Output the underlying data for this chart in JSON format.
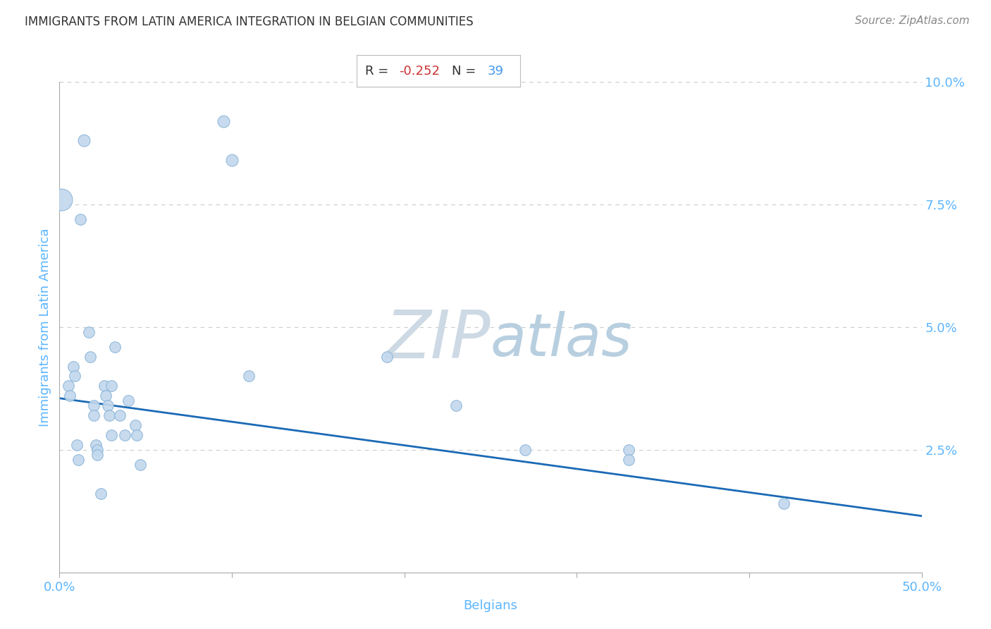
{
  "title": "IMMIGRANTS FROM LATIN AMERICA INTEGRATION IN BELGIAN COMMUNITIES",
  "source": "Source: ZipAtlas.com",
  "xlabel": "Belgians",
  "ylabel": "Immigrants from Latin America",
  "xlim": [
    0.0,
    0.5
  ],
  "ylim": [
    0.0,
    0.1
  ],
  "xtick_positions": [
    0.0,
    0.1,
    0.2,
    0.3,
    0.4,
    0.5
  ],
  "ytick_positions": [
    0.0,
    0.025,
    0.05,
    0.075,
    0.1
  ],
  "xticklabels": [
    "0.0%",
    "",
    "",
    "",
    "",
    "50.0%"
  ],
  "yticklabels": [
    "",
    "2.5%",
    "5.0%",
    "7.5%",
    "10.0%"
  ],
  "R_value": "-0.252",
  "N_value": "39",
  "scatter_color": "#c2d8ed",
  "scatter_edge_color": "#8ab4d8",
  "line_color": "#1a6ab5",
  "title_color": "#333333",
  "axis_label_color": "#5bb5ff",
  "tick_label_color": "#5bb5ff",
  "grid_color": "#cccccc",
  "watermark_color": "#dce8f0",
  "source_color": "#888888",
  "stat_r_color": "#cc3333",
  "stat_n_color": "#4499ee",
  "stat_label_color": "#333333",
  "points": [
    [
      0.001,
      0.076,
      22
    ],
    [
      0.005,
      0.038,
      8
    ],
    [
      0.006,
      0.036,
      8
    ],
    [
      0.008,
      0.042,
      8
    ],
    [
      0.009,
      0.04,
      8
    ],
    [
      0.01,
      0.026,
      8
    ],
    [
      0.011,
      0.023,
      8
    ],
    [
      0.012,
      0.072,
      8
    ],
    [
      0.014,
      0.088,
      9
    ],
    [
      0.017,
      0.049,
      8
    ],
    [
      0.018,
      0.044,
      8
    ],
    [
      0.02,
      0.034,
      8
    ],
    [
      0.02,
      0.032,
      8
    ],
    [
      0.021,
      0.026,
      8
    ],
    [
      0.022,
      0.025,
      8
    ],
    [
      0.022,
      0.024,
      8
    ],
    [
      0.024,
      0.016,
      8
    ],
    [
      0.026,
      0.038,
      8
    ],
    [
      0.027,
      0.036,
      8
    ],
    [
      0.028,
      0.034,
      8
    ],
    [
      0.029,
      0.032,
      8
    ],
    [
      0.03,
      0.028,
      8
    ],
    [
      0.03,
      0.038,
      8
    ],
    [
      0.032,
      0.046,
      8
    ],
    [
      0.035,
      0.032,
      8
    ],
    [
      0.038,
      0.028,
      8
    ],
    [
      0.04,
      0.035,
      8
    ],
    [
      0.044,
      0.03,
      8
    ],
    [
      0.045,
      0.028,
      8
    ],
    [
      0.047,
      0.022,
      8
    ],
    [
      0.095,
      0.092,
      9
    ],
    [
      0.1,
      0.084,
      9
    ],
    [
      0.11,
      0.04,
      8
    ],
    [
      0.19,
      0.044,
      8
    ],
    [
      0.23,
      0.034,
      8
    ],
    [
      0.27,
      0.025,
      8
    ],
    [
      0.33,
      0.025,
      8
    ],
    [
      0.33,
      0.023,
      8
    ],
    [
      0.42,
      0.014,
      8
    ]
  ],
  "trendline_x": [
    0.0,
    0.5
  ],
  "trendline_y": [
    0.0355,
    0.0115
  ]
}
